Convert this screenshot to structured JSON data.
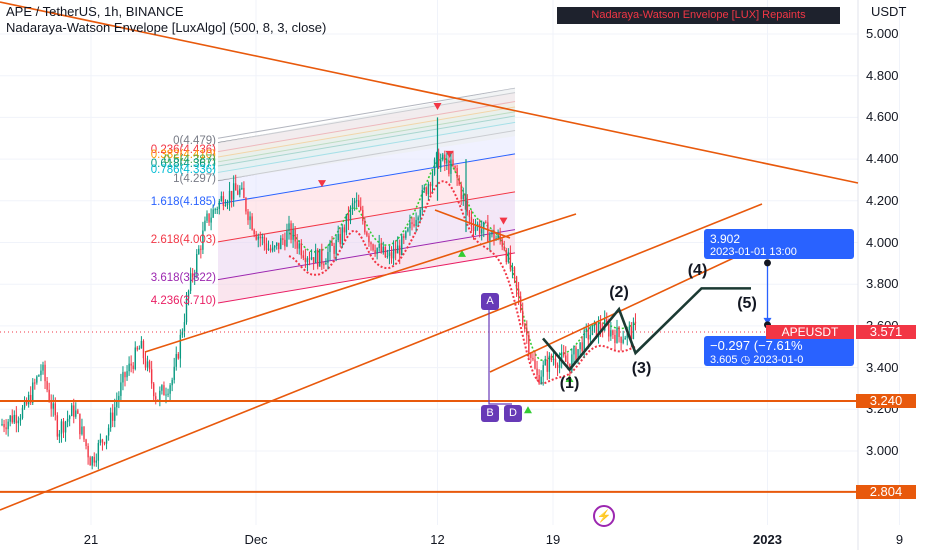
{
  "header": {
    "symbol_line": "APE / TetherUS, 1h, BINANCE",
    "indicator_line": "Nadaraya-Watson Envelope [LuxAlgo] (500, 8, 3, close)",
    "repaint_badge": "Nadaraya-Watson Envelope [LUX] Repaints"
  },
  "price_axis": {
    "currency": "USDT",
    "ticks": [
      "5.000",
      "4.800",
      "4.600",
      "4.400",
      "4.200",
      "4.000",
      "3.800",
      "3.600",
      "3.400",
      "3.200",
      "3.000"
    ]
  },
  "time_axis": {
    "ticks": [
      {
        "label": "21",
        "bold": false
      },
      {
        "label": "Dec",
        "bold": false
      },
      {
        "label": "12",
        "bold": false
      },
      {
        "label": "19",
        "bold": false
      },
      {
        "label": "2023",
        "bold": true
      },
      {
        "label": "9",
        "bold": false
      }
    ]
  },
  "fib_levels": [
    {
      "label": "0(4.479)",
      "value": 4.479,
      "color": "#787b86"
    },
    {
      "label": "0.236(4.436)",
      "value": 4.436,
      "color": "#f23645"
    },
    {
      "label": "0.382(4.410)",
      "value": 4.41,
      "color": "#ff9800"
    },
    {
      "label": "0.5(4.387)",
      "value": 4.387,
      "color": "#4caf50"
    },
    {
      "label": "0.618(4.367)",
      "value": 4.367,
      "color": "#089981"
    },
    {
      "label": "0.786(4.336)",
      "value": 4.336,
      "color": "#00bcd4"
    },
    {
      "label": "1(4.297)",
      "value": 4.297,
      "color": "#787b86"
    },
    {
      "label": "1.618(4.185)",
      "value": 4.185,
      "color": "#2962ff"
    },
    {
      "label": "2.618(4.003)",
      "value": 4.003,
      "color": "#f23645"
    },
    {
      "label": "3.618(3.822)",
      "value": 3.822,
      "color": "#9c27b0"
    },
    {
      "label": "4.236(3.710)",
      "value": 3.71,
      "color": "#e91e63"
    }
  ],
  "waves": [
    "(1)",
    "(2)",
    "(3)",
    "(4)",
    "(5)"
  ],
  "pattern_points": [
    "A",
    "B",
    "D"
  ],
  "price_tags": {
    "level_high": "3.240",
    "level_low": "2.804",
    "symbol_label": "APEUSDT",
    "symbol_price": "3.571"
  },
  "projection": {
    "top_price": "3.902",
    "top_time": "2023-01-01 13:00",
    "change": "−0.297 (−7.61%",
    "bottom_price": "3.605",
    "bottom_time": "2023-01-0"
  },
  "colors": {
    "up": "#089981",
    "down": "#f23645",
    "trendline": "#e8590c",
    "nw_upper": "#f23645",
    "nw_lower": "#33cc33",
    "projection": "#2962ff",
    "pattern": "#673ab7",
    "wave_path": "#1b3a33"
  },
  "icons": {
    "flash": "flash-icon"
  },
  "chart_data": {
    "type": "candlestick",
    "symbol": "APE / TetherUS",
    "interval": "1h",
    "exchange": "BINANCE",
    "ylim": [
      2.78,
      5.05
    ],
    "x_range": [
      "2022-11-15",
      "2023-01-10"
    ],
    "last_price": 3.571,
    "horizontal_levels": [
      3.24,
      2.804
    ],
    "anchors": [
      [
        "2022-11-15",
        3.1
      ],
      [
        "2022-11-17",
        3.2
      ],
      [
        "2022-11-18",
        3.4
      ],
      [
        "2022-11-19",
        3.1
      ],
      [
        "2022-11-20",
        3.2
      ],
      [
        "2022-11-21",
        2.95
      ],
      [
        "2022-11-22",
        3.1
      ],
      [
        "2022-11-23",
        3.35
      ],
      [
        "2022-11-24",
        3.5
      ],
      [
        "2022-11-25",
        3.25
      ],
      [
        "2022-11-26",
        3.35
      ],
      [
        "2022-11-27",
        3.8
      ],
      [
        "2022-11-28",
        4.1
      ],
      [
        "2022-11-29",
        4.22
      ],
      [
        "2022-11-30",
        4.25
      ],
      [
        "2022-12-01",
        4.05
      ],
      [
        "2022-12-02",
        3.95
      ],
      [
        "2022-12-03",
        4.05
      ],
      [
        "2022-12-04",
        3.95
      ],
      [
        "2022-12-05",
        3.92
      ],
      [
        "2022-12-06",
        4.0
      ],
      [
        "2022-12-07",
        4.2
      ],
      [
        "2022-12-08",
        4.0
      ],
      [
        "2022-12-09",
        3.92
      ],
      [
        "2022-12-10",
        4.0
      ],
      [
        "2022-12-11",
        4.2
      ],
      [
        "2022-12-12",
        4.4
      ],
      [
        "2022-12-13",
        4.35
      ],
      [
        "2022-12-14",
        4.1
      ],
      [
        "2022-12-15",
        4.05
      ],
      [
        "2022-12-16",
        4.0
      ],
      [
        "2022-12-17",
        3.7
      ],
      [
        "2022-12-18",
        3.35
      ],
      [
        "2022-12-19",
        3.45
      ],
      [
        "2022-12-20",
        3.42
      ],
      [
        "2022-12-21",
        3.55
      ],
      [
        "2022-12-22",
        3.6
      ],
      [
        "2022-12-23",
        3.55
      ],
      [
        "2022-12-24",
        3.58
      ]
    ],
    "wave_path": [
      {
        "label": "(1)",
        "x": "2022-12-20",
        "y": 3.39
      },
      {
        "label": "(2)",
        "x": "2022-12-23",
        "y": 3.68
      },
      {
        "label": "(3)",
        "x": "2022-12-24",
        "y": 3.47
      },
      {
        "label": "(4)",
        "x": "2022-12-28",
        "y": 3.78
      },
      {
        "label": "(5)",
        "x": "2022-12-31",
        "y": 3.78
      }
    ],
    "projection": {
      "from": {
        "x": "2023-01-01",
        "y": 3.902
      },
      "to": {
        "x": "2023-01-01",
        "y": 3.605
      },
      "change": -0.297,
      "change_pct": -7.61
    }
  }
}
